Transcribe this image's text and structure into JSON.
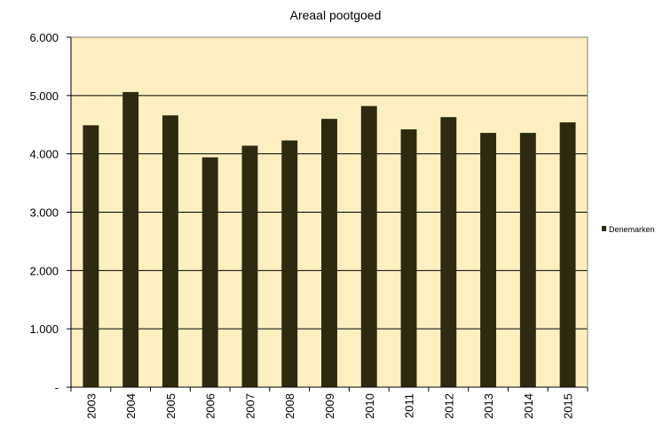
{
  "chart_data": {
    "type": "bar",
    "title": "Areaal pootgoed",
    "categories": [
      "2003",
      "2004",
      "2005",
      "2006",
      "2007",
      "2008",
      "2009",
      "2010",
      "2011",
      "2012",
      "2013",
      "2014",
      "2015"
    ],
    "series": [
      {
        "name": "Denemarken",
        "values": [
          4490,
          5060,
          4660,
          3940,
          4140,
          4230,
          4600,
          4820,
          4420,
          4630,
          4360,
          4360,
          4540
        ]
      }
    ],
    "y_ticks": [
      "-",
      "1.000",
      "2.000",
      "3.000",
      "4.000",
      "5.000",
      "6.000"
    ],
    "ylim": [
      0,
      6000
    ],
    "grid": true,
    "legend_position": "right",
    "colors": {
      "bar": "#2e2a10",
      "plot_background": "#fdefc0",
      "gridline": "#000000"
    }
  }
}
